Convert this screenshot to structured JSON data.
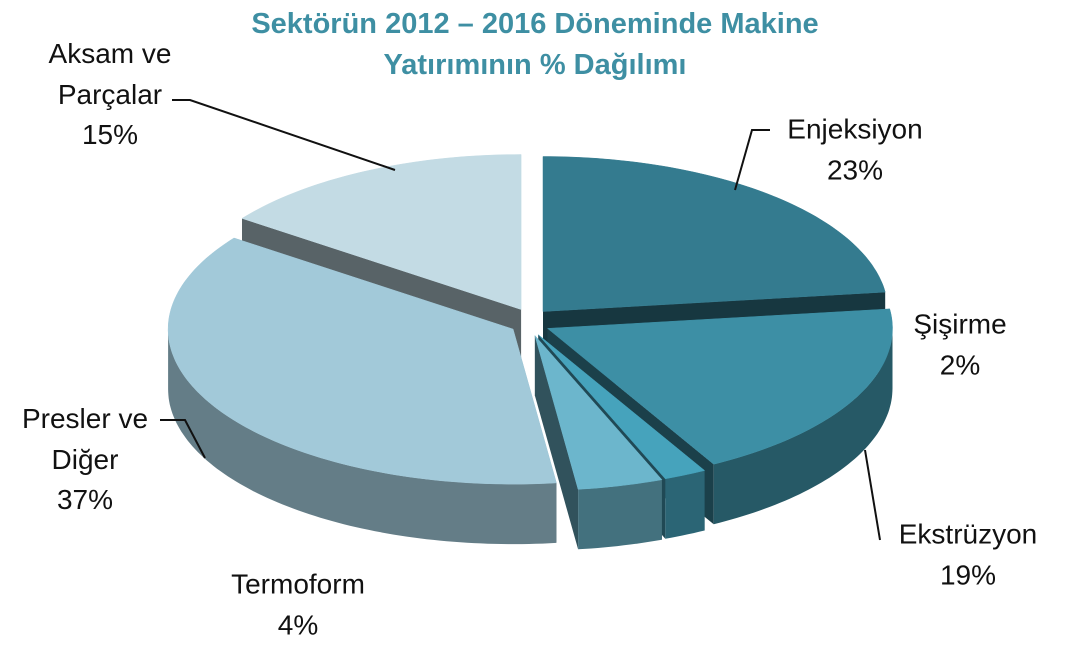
{
  "chart_data": {
    "type": "pie3d",
    "title": "Sektörün 2012 – 2016 Döneminde Makine Yatırımının % Dağılımı",
    "categories": [
      "Enjeksiyon",
      "Ekstrüzyon",
      "Şişirme",
      "Termoform",
      "Presler ve Diğer",
      "Aksam ve Parçalar"
    ],
    "values": [
      23,
      19,
      2,
      4,
      37,
      15
    ],
    "value_labels": [
      "23%",
      "19%",
      "2%",
      "4%",
      "37%",
      "15%"
    ],
    "colors": [
      "#347b8f",
      "#3d8fa5",
      "#46a3bc",
      "#6cb6cc",
      "#a2c9d9",
      "#c3dbe4"
    ]
  }
}
